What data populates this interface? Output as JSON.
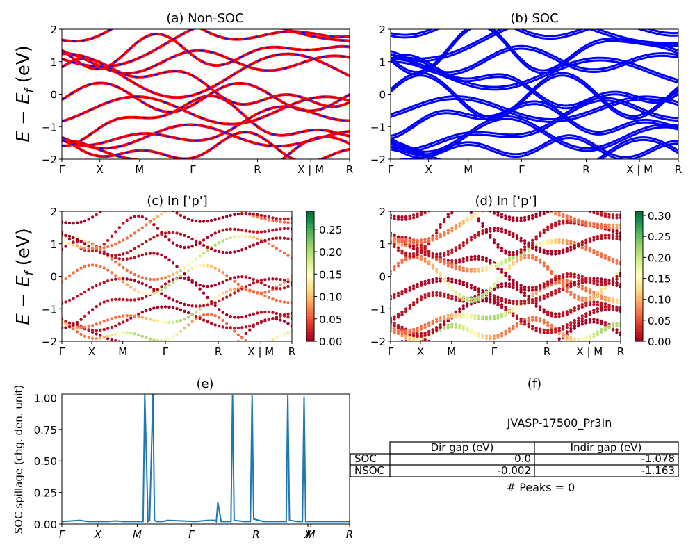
{
  "colors": {
    "nsoc_band": "#ff0000",
    "nsoc_band_dash": "#0000ff",
    "soc_band": "#0000ff",
    "spillage_line": "#1f77b4",
    "axis": "#000000",
    "colormap": "RdYlGn"
  },
  "chart_data": [
    {
      "panel": "a",
      "type": "line",
      "title": "(a) Non-SOC",
      "ylabel": "E − E_f (eV)",
      "ylim": [
        -2,
        2
      ],
      "yticks": [
        "2",
        "1",
        "0",
        "−1",
        "−2"
      ],
      "kpath_labels": [
        "Γ",
        "X",
        "M",
        "Γ",
        "R",
        "X | M",
        "R"
      ],
      "grid": false,
      "series_count": 14
    },
    {
      "panel": "b",
      "type": "line",
      "title": "(b) SOC",
      "ylim": [
        -2,
        2
      ],
      "yticks": [
        "2",
        "1",
        "0",
        "−1",
        "−2"
      ],
      "kpath_labels": [
        "Γ",
        "X",
        "M",
        "Γ",
        "R",
        "X | M",
        "R"
      ],
      "grid": false,
      "series_count": 14
    },
    {
      "panel": "c",
      "type": "scatter",
      "title": "(c)  In ['p']",
      "ylabel": "E − E_f (eV)",
      "ylim": [
        -2,
        2
      ],
      "yticks": [
        "2",
        "1",
        "0",
        "−1",
        "−2"
      ],
      "kpath_labels": [
        "Γ",
        "X",
        "M",
        "Γ",
        "R",
        "X | M",
        "R"
      ],
      "colorbar": {
        "range": [
          0,
          0.29
        ],
        "ticks": [
          "0.25",
          "0.20",
          "0.15",
          "0.10",
          "0.05",
          "0.00"
        ]
      }
    },
    {
      "panel": "d",
      "type": "scatter",
      "title": "(d) In ['p']",
      "ylim": [
        -2,
        2
      ],
      "yticks": [
        "2",
        "1",
        "0",
        "−1",
        "−2"
      ],
      "kpath_labels": [
        "Γ",
        "X",
        "M",
        "Γ",
        "R",
        "X | M",
        "R"
      ],
      "colorbar": {
        "range": [
          0,
          0.31
        ],
        "ticks": [
          "0.30",
          "0.25",
          "0.20",
          "0.15",
          "0.10",
          "0.05",
          "0.00"
        ]
      }
    },
    {
      "panel": "e",
      "type": "line",
      "title": "(e)",
      "ylabel": "SOC spillage (chg. den. unit)",
      "ylim": [
        0,
        1.03
      ],
      "yticks": [
        "1.00",
        "0.75",
        "0.50",
        "0.25",
        "0.00"
      ],
      "kpath_labels": [
        "Γ",
        "X",
        "M",
        "Γ",
        "R",
        "X",
        "M",
        "R"
      ],
      "x": [
        0,
        6,
        11,
        16,
        22,
        28,
        33,
        38,
        46,
        50,
        51,
        53,
        54,
        56,
        57,
        58,
        60,
        62,
        65,
        74,
        82,
        90,
        94,
        95,
        96,
        98,
        99,
        100,
        104,
        105,
        106,
        112,
        116,
        117,
        118,
        124,
        134,
        137,
        138,
        139,
        140,
        145,
        148,
        149,
        150,
        154,
        155,
        156,
        158,
        159,
        161,
        170,
        175,
        177
      ],
      "y": [
        0.02,
        0.025,
        0.03,
        0.02,
        0.02,
        0.02,
        0.025,
        0.02,
        0.02,
        0.02,
        1.03,
        0.02,
        0.03,
        1.03,
        0.03,
        0.02,
        0.02,
        0.02,
        0.03,
        0.025,
        0.02,
        0.03,
        0.03,
        0.02,
        0.17,
        0.02,
        0.02,
        0.02,
        0.02,
        1.02,
        0.03,
        0.02,
        0.02,
        1.02,
        0.04,
        0.02,
        0.02,
        0.02,
        0.02,
        1.02,
        0.03,
        0.02,
        0.02,
        1.01,
        0.02,
        0.02,
        0.02,
        0.02,
        0.02,
        0.02,
        0.02,
        0.02,
        0.02,
        0.02
      ]
    },
    {
      "panel": "f",
      "type": "table",
      "title": "(f)",
      "subtitle": "JVASP-17500_Pr3In",
      "columns": [
        "Dir gap (eV)",
        "Indir gap (eV)"
      ],
      "rows": [
        {
          "label": "SOC",
          "values": [
            "0.0",
            "-1.078"
          ]
        },
        {
          "label": "NSOC",
          "values": [
            "-0.002",
            "-1.163"
          ]
        }
      ],
      "footer": "# Peaks = 0"
    }
  ]
}
